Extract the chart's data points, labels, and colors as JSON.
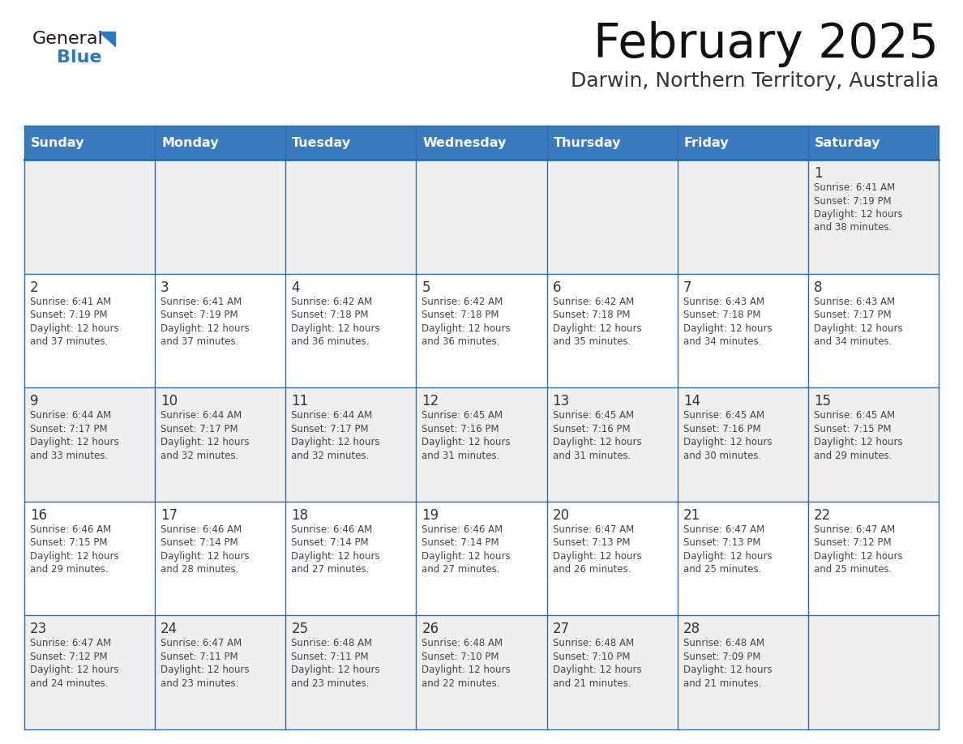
{
  "title": "February 2025",
  "subtitle": "Darwin, Northern Territory, Australia",
  "days_of_week": [
    "Sunday",
    "Monday",
    "Tuesday",
    "Wednesday",
    "Thursday",
    "Friday",
    "Saturday"
  ],
  "header_bg": "#3a7abf",
  "header_text": "#ffffff",
  "row_bg_light": "#efefef",
  "row_bg_white": "#ffffff",
  "border_color": "#2e6da4",
  "text_color": "#444444",
  "day_num_color": "#333333",
  "logo_general_color": "#1a1a1a",
  "logo_blue_color": "#2a7abf",
  "title_color": "#111111",
  "subtitle_color": "#333333",
  "calendar": [
    [
      {
        "day": null,
        "info": ""
      },
      {
        "day": null,
        "info": ""
      },
      {
        "day": null,
        "info": ""
      },
      {
        "day": null,
        "info": ""
      },
      {
        "day": null,
        "info": ""
      },
      {
        "day": null,
        "info": ""
      },
      {
        "day": 1,
        "info": "Sunrise: 6:41 AM\nSunset: 7:19 PM\nDaylight: 12 hours\nand 38 minutes."
      }
    ],
    [
      {
        "day": 2,
        "info": "Sunrise: 6:41 AM\nSunset: 7:19 PM\nDaylight: 12 hours\nand 37 minutes."
      },
      {
        "day": 3,
        "info": "Sunrise: 6:41 AM\nSunset: 7:19 PM\nDaylight: 12 hours\nand 37 minutes."
      },
      {
        "day": 4,
        "info": "Sunrise: 6:42 AM\nSunset: 7:18 PM\nDaylight: 12 hours\nand 36 minutes."
      },
      {
        "day": 5,
        "info": "Sunrise: 6:42 AM\nSunset: 7:18 PM\nDaylight: 12 hours\nand 36 minutes."
      },
      {
        "day": 6,
        "info": "Sunrise: 6:42 AM\nSunset: 7:18 PM\nDaylight: 12 hours\nand 35 minutes."
      },
      {
        "day": 7,
        "info": "Sunrise: 6:43 AM\nSunset: 7:18 PM\nDaylight: 12 hours\nand 34 minutes."
      },
      {
        "day": 8,
        "info": "Sunrise: 6:43 AM\nSunset: 7:17 PM\nDaylight: 12 hours\nand 34 minutes."
      }
    ],
    [
      {
        "day": 9,
        "info": "Sunrise: 6:44 AM\nSunset: 7:17 PM\nDaylight: 12 hours\nand 33 minutes."
      },
      {
        "day": 10,
        "info": "Sunrise: 6:44 AM\nSunset: 7:17 PM\nDaylight: 12 hours\nand 32 minutes."
      },
      {
        "day": 11,
        "info": "Sunrise: 6:44 AM\nSunset: 7:17 PM\nDaylight: 12 hours\nand 32 minutes."
      },
      {
        "day": 12,
        "info": "Sunrise: 6:45 AM\nSunset: 7:16 PM\nDaylight: 12 hours\nand 31 minutes."
      },
      {
        "day": 13,
        "info": "Sunrise: 6:45 AM\nSunset: 7:16 PM\nDaylight: 12 hours\nand 31 minutes."
      },
      {
        "day": 14,
        "info": "Sunrise: 6:45 AM\nSunset: 7:16 PM\nDaylight: 12 hours\nand 30 minutes."
      },
      {
        "day": 15,
        "info": "Sunrise: 6:45 AM\nSunset: 7:15 PM\nDaylight: 12 hours\nand 29 minutes."
      }
    ],
    [
      {
        "day": 16,
        "info": "Sunrise: 6:46 AM\nSunset: 7:15 PM\nDaylight: 12 hours\nand 29 minutes."
      },
      {
        "day": 17,
        "info": "Sunrise: 6:46 AM\nSunset: 7:14 PM\nDaylight: 12 hours\nand 28 minutes."
      },
      {
        "day": 18,
        "info": "Sunrise: 6:46 AM\nSunset: 7:14 PM\nDaylight: 12 hours\nand 27 minutes."
      },
      {
        "day": 19,
        "info": "Sunrise: 6:46 AM\nSunset: 7:14 PM\nDaylight: 12 hours\nand 27 minutes."
      },
      {
        "day": 20,
        "info": "Sunrise: 6:47 AM\nSunset: 7:13 PM\nDaylight: 12 hours\nand 26 minutes."
      },
      {
        "day": 21,
        "info": "Sunrise: 6:47 AM\nSunset: 7:13 PM\nDaylight: 12 hours\nand 25 minutes."
      },
      {
        "day": 22,
        "info": "Sunrise: 6:47 AM\nSunset: 7:12 PM\nDaylight: 12 hours\nand 25 minutes."
      }
    ],
    [
      {
        "day": 23,
        "info": "Sunrise: 6:47 AM\nSunset: 7:12 PM\nDaylight: 12 hours\nand 24 minutes."
      },
      {
        "day": 24,
        "info": "Sunrise: 6:47 AM\nSunset: 7:11 PM\nDaylight: 12 hours\nand 23 minutes."
      },
      {
        "day": 25,
        "info": "Sunrise: 6:48 AM\nSunset: 7:11 PM\nDaylight: 12 hours\nand 23 minutes."
      },
      {
        "day": 26,
        "info": "Sunrise: 6:48 AM\nSunset: 7:10 PM\nDaylight: 12 hours\nand 22 minutes."
      },
      {
        "day": 27,
        "info": "Sunrise: 6:48 AM\nSunset: 7:10 PM\nDaylight: 12 hours\nand 21 minutes."
      },
      {
        "day": 28,
        "info": "Sunrise: 6:48 AM\nSunset: 7:09 PM\nDaylight: 12 hours\nand 21 minutes."
      },
      {
        "day": null,
        "info": ""
      }
    ]
  ]
}
